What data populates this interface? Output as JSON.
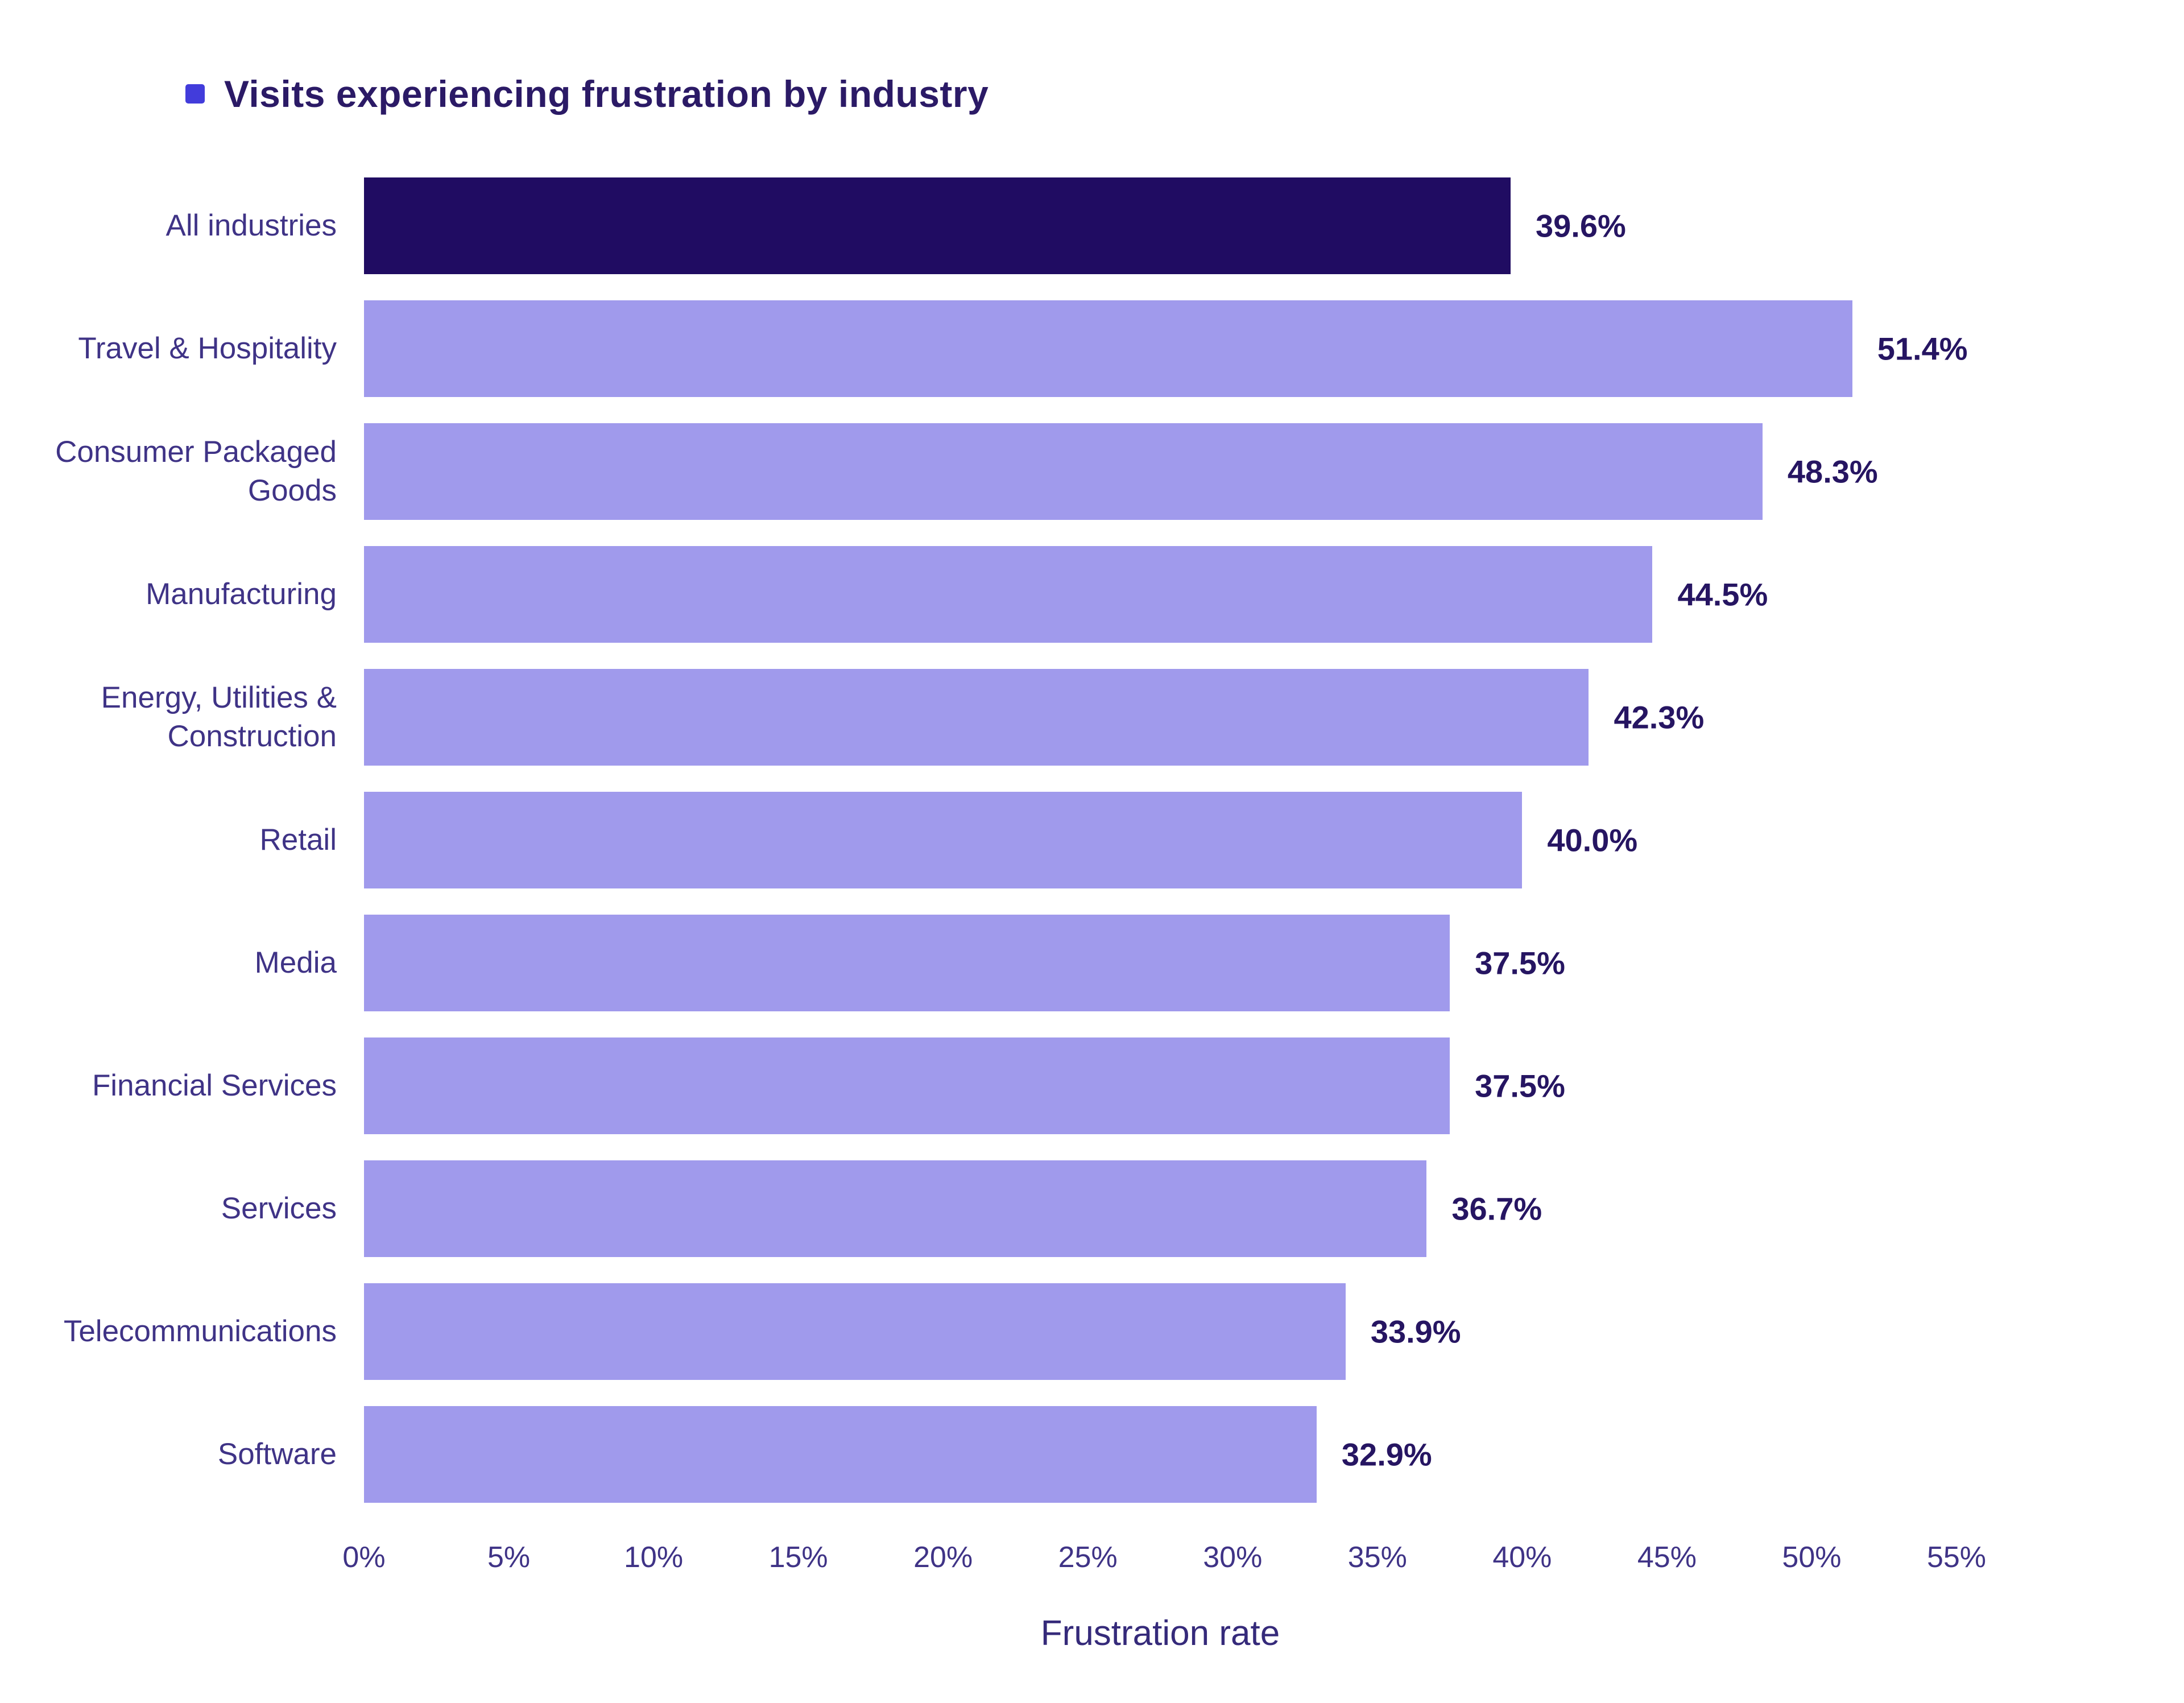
{
  "title": {
    "text": "Visits experiencing frustration by industry",
    "bullet_color": "#423cdb"
  },
  "chart_data": {
    "type": "bar",
    "orientation": "horizontal",
    "title": "Visits experiencing frustration by industry",
    "categories": [
      "All industries",
      "Travel & Hospitality",
      "Consumer Packaged Goods",
      "Manufacturing",
      "Energy, Utilities & Construction",
      "Retail",
      "Media",
      "Financial Services",
      "Services",
      "Telecommunications",
      "Software"
    ],
    "values": [
      39.6,
      51.4,
      48.3,
      44.5,
      42.3,
      40.0,
      37.5,
      37.5,
      36.7,
      33.9,
      32.9
    ],
    "value_labels": [
      "39.6%",
      "51.4%",
      "48.3%",
      "44.5%",
      "42.3%",
      "40.0%",
      "37.5%",
      "37.5%",
      "36.7%",
      "33.9%",
      "32.9%"
    ],
    "highlight_index": 0,
    "bar_color_highlight": "#200c62",
    "bar_color_default": "#a09aec",
    "xlabel": "Frustration rate",
    "x_ticks": [
      "0%",
      "5%",
      "10%",
      "15%",
      "20%",
      "25%",
      "30%",
      "35%",
      "40%",
      "45%",
      "50%",
      "55%"
    ],
    "xlim": [
      0,
      55
    ],
    "grid": false,
    "legend_position": "top-left"
  }
}
